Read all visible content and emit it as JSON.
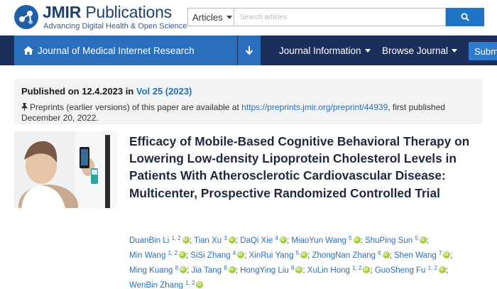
{
  "header": {
    "brand_bold": "JMIR",
    "brand_rest": " Publications",
    "tagline": "Advancing Digital Health & Open Science",
    "search_scope": "Articles",
    "search_placeholder": "Search articles"
  },
  "nav": {
    "journal_label": "Journal of Medical Internet Research",
    "journal_information": "Journal Information",
    "browse_journal": "Browse Journal",
    "submit": "Submit"
  },
  "publication": {
    "published_prefix": "Published on ",
    "published_date": "12.4.2023",
    "published_in": " in ",
    "volume": "Vol 25 (2023)",
    "preprint_prefix": "Preprints (earlier versions) of this paper are available at ",
    "preprint_url": "https://preprints.jmir.org/preprint/44939",
    "preprint_suffix": ", first published December 20, 2022."
  },
  "article": {
    "title": "Efficacy of Mobile-Based Cognitive Behavioral Therapy on Lowering Low-density Lipoprotein Cholesterol Levels in Patients With Atherosclerotic Cardiovascular Disease: Multicenter, Prospective Randomized Controlled Trial"
  },
  "authors": [
    {
      "name": "DuanBin Li",
      "aff": "1, 2"
    },
    {
      "name": "Tian Xu",
      "aff": "3"
    },
    {
      "name": "DaQi Xie",
      "aff": "4"
    },
    {
      "name": "MiaoYun Wang",
      "aff": "5"
    },
    {
      "name": "ShuPing Sun",
      "aff": "5"
    },
    {
      "name": "Min Wang",
      "aff": "1, 2"
    },
    {
      "name": "SiSi Zhang",
      "aff": "4"
    },
    {
      "name": "XinRui Yang",
      "aff": "5"
    },
    {
      "name": "ZhongNan Zhang",
      "aff": "6"
    },
    {
      "name": "Shen Wang",
      "aff": "7"
    },
    {
      "name": "Ming Kuang",
      "aff": "8"
    },
    {
      "name": "Jia Tang",
      "aff": "8"
    },
    {
      "name": "HongYing Liu",
      "aff": "8"
    },
    {
      "name": "XuLin Hong",
      "aff": "1, 2"
    },
    {
      "name": "GuoSheng Fu",
      "aff": "1, 2"
    },
    {
      "name": "WenBin Zhang",
      "aff": "1, 2"
    }
  ],
  "colors": {
    "nav_bg": "#1c2f5c",
    "journal_bg": "#2a6fbc",
    "link": "#2b6fb8",
    "orcid": "#a6ce39"
  }
}
